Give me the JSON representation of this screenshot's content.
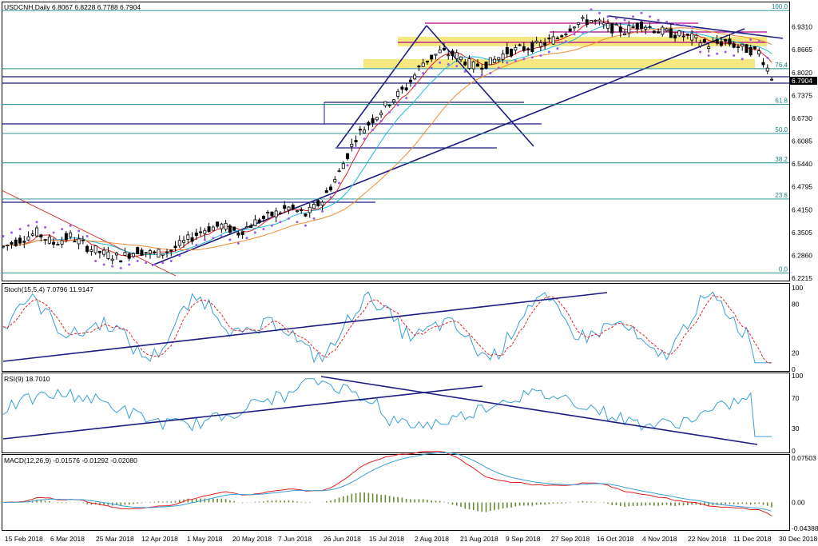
{
  "panels": {
    "main_title": "USDCNH,Daily  6.8067 6.8228 6.7788 6.7904",
    "stoch_title": "Stoch(15,5,4) 7.0796 11.9147",
    "rsi_title": "RSI(9) 18.7010",
    "macd_title": "MACD(12,26,9) -0.01576 -0.01292 -0.02080"
  },
  "colors": {
    "bg": "#ffffff",
    "candle": "#000000",
    "trendline": "#1c1c80",
    "fib_line": "#1a8a8a",
    "fib_box": "#f3e46a",
    "magenta": "#b0008a",
    "psar": "#9b5cf0",
    "ma_fast": "#e02020",
    "ma_slow": "#f08a30",
    "ma_cyan": "#20b8d8",
    "macd_hist": "#6a8a30",
    "osc": "#3aa0d8",
    "osc_signal": "#e02020"
  },
  "chart_data": [
    {
      "type": "candlestick",
      "title": "USDCNH,Daily",
      "ohlc_last": {
        "open": 6.8067,
        "high": 6.8228,
        "low": 6.7788,
        "close": 6.7904
      },
      "y_ticks": [
        "6.9310",
        "6.8665",
        "6.8020",
        "6.7375",
        "6.6730",
        "6.6085",
        "6.5440",
        "6.4795",
        "6.4150",
        "6.3505",
        "6.2860",
        "6.2215"
      ],
      "current_price": "6.7904",
      "ylim": [
        6.2215,
        6.9955
      ],
      "x_ticks": [
        "15 Feb 2018",
        "6 Mar 2018",
        "25 Mar 2018",
        "12 Apr 2018",
        "1 May 2018",
        "20 May 2018",
        "7 Jun 2018",
        "26 Jun 2018",
        "15 Jul 2018",
        "2 Aug 2018",
        "21 Aug 2018",
        "9 Sep 2018",
        "27 Sep 2018",
        "16 Oct 2018",
        "4 Nov 2018",
        "22 Nov 2018",
        "11 Dec 2018",
        "30 Dec 2018"
      ],
      "fib_levels": [
        {
          "label": "100.0",
          "value": 6.977
        },
        {
          "label": "76.4",
          "value": 6.813
        },
        {
          "label": "61.8",
          "value": 6.712
        },
        {
          "label": "50.0",
          "value": 6.63
        },
        {
          "label": "38.2",
          "value": 6.547
        },
        {
          "label": "23.6",
          "value": 6.445
        },
        {
          "label": "0.0",
          "value": 6.236
        }
      ],
      "close_path": [
        [
          0,
          6.31
        ],
        [
          4,
          6.33
        ],
        [
          8,
          6.35
        ],
        [
          12,
          6.32
        ],
        [
          16,
          6.34
        ],
        [
          20,
          6.31
        ],
        [
          24,
          6.29
        ],
        [
          28,
          6.28
        ],
        [
          32,
          6.3
        ],
        [
          36,
          6.29
        ],
        [
          40,
          6.3
        ],
        [
          44,
          6.33
        ],
        [
          48,
          6.36
        ],
        [
          52,
          6.37
        ],
        [
          56,
          6.35
        ],
        [
          60,
          6.38
        ],
        [
          64,
          6.4
        ],
        [
          68,
          6.42
        ],
        [
          72,
          6.4
        ],
        [
          76,
          6.44
        ],
        [
          80,
          6.52
        ],
        [
          84,
          6.62
        ],
        [
          88,
          6.67
        ],
        [
          92,
          6.72
        ],
        [
          96,
          6.76
        ],
        [
          100,
          6.83
        ],
        [
          104,
          6.86
        ],
        [
          108,
          6.85
        ],
        [
          112,
          6.82
        ],
        [
          116,
          6.83
        ],
        [
          120,
          6.86
        ],
        [
          124,
          6.87
        ],
        [
          128,
          6.88
        ],
        [
          132,
          6.9
        ],
        [
          136,
          6.94
        ],
        [
          140,
          6.95
        ],
        [
          144,
          6.93
        ],
        [
          148,
          6.92
        ],
        [
          152,
          6.94
        ],
        [
          156,
          6.92
        ],
        [
          160,
          6.91
        ],
        [
          164,
          6.9
        ],
        [
          168,
          6.88
        ],
        [
          172,
          6.89
        ],
        [
          176,
          6.87
        ],
        [
          180,
          6.86
        ],
        [
          183,
          6.79
        ]
      ]
    },
    {
      "type": "line",
      "title": "Stoch(15,5,4)",
      "values_last": [
        7.0796,
        11.9147
      ],
      "ylim": [
        0,
        100
      ],
      "y_ticks": [
        "100",
        "80",
        "20",
        "0"
      ]
    },
    {
      "type": "line",
      "title": "RSI(9)",
      "values_last": [
        18.701
      ],
      "ylim": [
        0,
        100
      ],
      "y_ticks": [
        "100",
        "70",
        "30",
        "0"
      ]
    },
    {
      "type": "bar",
      "title": "MACD(12,26,9)",
      "values_last": [
        -0.01576,
        -0.01292,
        -0.0208
      ],
      "y_ticks": [
        "0.07503",
        "0.00",
        "-0.04388"
      ]
    }
  ]
}
